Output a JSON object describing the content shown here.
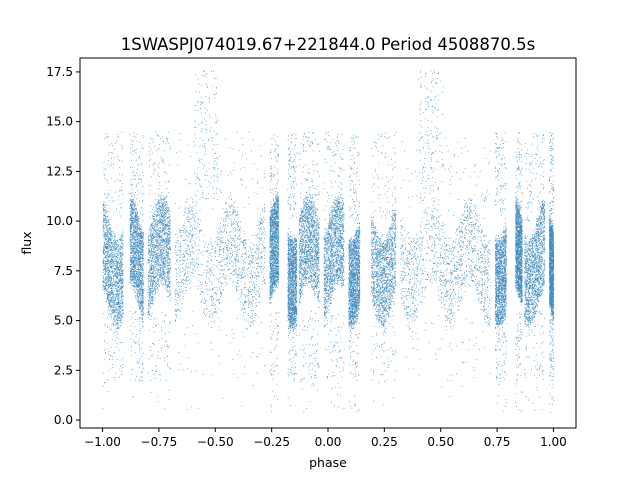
{
  "chart_data": {
    "type": "scatter",
    "title": "1SWASPJ074019.67+221844.0 Period 4508870.5s",
    "xlabel": "phase",
    "ylabel": "flux",
    "xlim": [
      -1.1,
      1.1
    ],
    "ylim": [
      -0.4,
      18.2
    ],
    "x_ticks": [
      -1.0,
      -0.75,
      -0.5,
      -0.25,
      0.0,
      0.25,
      0.5,
      0.75,
      1.0
    ],
    "x_tick_labels": [
      "−1.00",
      "−0.75",
      "−0.50",
      "−0.25",
      "0.00",
      "0.25",
      "0.50",
      "0.75",
      "1.00"
    ],
    "y_ticks": [
      0.0,
      2.5,
      5.0,
      7.5,
      10.0,
      12.5,
      15.0,
      17.5
    ],
    "y_tick_labels": [
      "0.0",
      "2.5",
      "5.0",
      "7.5",
      "10.0",
      "12.5",
      "15.0",
      "17.5"
    ],
    "grid": false,
    "legend": "none",
    "marker_color": "#1f77b4",
    "series": [
      {
        "phase_segments": [
          [
            -1.0,
            -0.91
          ],
          [
            -0.88,
            -0.82
          ],
          [
            -0.8,
            -0.7
          ],
          [
            -0.68,
            -0.28
          ],
          [
            -0.26,
            -0.22
          ],
          [
            -0.18,
            -0.14
          ],
          [
            -0.13,
            -0.04
          ],
          [
            -0.02,
            0.07
          ],
          [
            0.09,
            0.14
          ],
          [
            0.19,
            0.3
          ],
          [
            0.32,
            0.72
          ],
          [
            0.74,
            0.79
          ],
          [
            0.83,
            0.86
          ],
          [
            0.87,
            0.96
          ],
          [
            0.98,
            1.0
          ]
        ],
        "baseline_flux_range": [
          5.5,
          10.5
        ],
        "flux_median": 8.2,
        "flux_max": 17.6,
        "flux_min": 0.4,
        "bright_excursion_phases": [
          -0.57,
          -0.52,
          0.43,
          0.48
        ]
      }
    ]
  }
}
